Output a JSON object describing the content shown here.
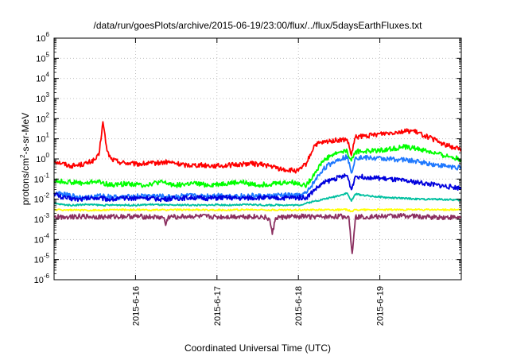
{
  "chart_data": {
    "type": "line",
    "title": "/data/run/goesPlots/archive/2015-06-19/23:00/flux/../flux/5daysEarthFluxes.txt",
    "xlabel": "Coordinated Universal Time (UTC)",
    "ylabel_parts": {
      "base": "protons/cm",
      "sup": "2",
      "rest": "-s-sr-MeV"
    },
    "y_scale": "log",
    "ylim_exp": [
      -6,
      6
    ],
    "y_ticks": [
      {
        "base": "10",
        "exp": "-6"
      },
      {
        "base": "10",
        "exp": "-5"
      },
      {
        "base": "10",
        "exp": "-4"
      },
      {
        "base": "10",
        "exp": "-3"
      },
      {
        "base": "10",
        "exp": "-2"
      },
      {
        "base": "10",
        "exp": "-1"
      },
      {
        "base": "10",
        "exp": "0"
      },
      {
        "base": "10",
        "exp": "1"
      },
      {
        "base": "10",
        "exp": "2"
      },
      {
        "base": "10",
        "exp": "3"
      },
      {
        "base": "10",
        "exp": "4"
      },
      {
        "base": "10",
        "exp": "5"
      },
      {
        "base": "10",
        "exp": "6"
      }
    ],
    "x_unit": "day of June 2015 (UTC)",
    "xlim": [
      15.0,
      20.0
    ],
    "x_ticks": [
      {
        "value": 16,
        "label": "2015-6-16"
      },
      {
        "value": 17,
        "label": "2015-6-17"
      },
      {
        "value": 18,
        "label": "2015-6-18"
      },
      {
        "value": 19,
        "label": "2015-6-19"
      }
    ],
    "grid": true,
    "grid_style": "dotted",
    "series": [
      {
        "color": "#ff0000",
        "points": [
          [
            15.0,
            0.8
          ],
          [
            15.1,
            0.6
          ],
          [
            15.2,
            0.45
          ],
          [
            15.3,
            0.5
          ],
          [
            15.4,
            0.6
          ],
          [
            15.5,
            0.9
          ],
          [
            15.55,
            1.5
          ],
          [
            15.6,
            70
          ],
          [
            15.65,
            2.5
          ],
          [
            15.7,
            1.0
          ],
          [
            15.8,
            0.7
          ],
          [
            16.0,
            0.55
          ],
          [
            16.2,
            0.6
          ],
          [
            16.4,
            0.7
          ],
          [
            16.6,
            0.5
          ],
          [
            16.8,
            0.5
          ],
          [
            17.0,
            0.45
          ],
          [
            17.2,
            0.5
          ],
          [
            17.4,
            0.6
          ],
          [
            17.6,
            0.5
          ],
          [
            17.8,
            0.3
          ],
          [
            18.0,
            0.25
          ],
          [
            18.1,
            0.6
          ],
          [
            18.2,
            5
          ],
          [
            18.4,
            8
          ],
          [
            18.6,
            9
          ],
          [
            18.65,
            1.5
          ],
          [
            18.7,
            12
          ],
          [
            18.9,
            15
          ],
          [
            19.0,
            18
          ],
          [
            19.2,
            22
          ],
          [
            19.4,
            25
          ],
          [
            19.6,
            12
          ],
          [
            19.8,
            5
          ],
          [
            20.0,
            3
          ]
        ]
      },
      {
        "color": "#00ff00",
        "points": [
          [
            15.0,
            0.08
          ],
          [
            15.2,
            0.07
          ],
          [
            15.4,
            0.06
          ],
          [
            15.5,
            0.08
          ],
          [
            15.7,
            0.05
          ],
          [
            15.9,
            0.06
          ],
          [
            16.1,
            0.05
          ],
          [
            16.3,
            0.07
          ],
          [
            16.5,
            0.05
          ],
          [
            16.7,
            0.06
          ],
          [
            16.9,
            0.05
          ],
          [
            17.1,
            0.06
          ],
          [
            17.3,
            0.07
          ],
          [
            17.5,
            0.05
          ],
          [
            17.7,
            0.06
          ],
          [
            17.9,
            0.07
          ],
          [
            18.1,
            0.05
          ],
          [
            18.2,
            0.2
          ],
          [
            18.3,
            0.8
          ],
          [
            18.4,
            1.5
          ],
          [
            18.5,
            2.2
          ],
          [
            18.6,
            2.5
          ],
          [
            18.65,
            0.8
          ],
          [
            18.7,
            2.3
          ],
          [
            18.9,
            2.5
          ],
          [
            19.1,
            3
          ],
          [
            19.3,
            4
          ],
          [
            19.5,
            3
          ],
          [
            19.7,
            1.8
          ],
          [
            19.9,
            1.2
          ],
          [
            20.0,
            0.9
          ]
        ]
      },
      {
        "color": "#1e78ff",
        "points": [
          [
            15.0,
            0.02
          ],
          [
            15.2,
            0.015
          ],
          [
            15.4,
            0.012
          ],
          [
            15.6,
            0.015
          ],
          [
            15.8,
            0.012
          ],
          [
            16.0,
            0.014
          ],
          [
            16.2,
            0.015
          ],
          [
            16.4,
            0.013
          ],
          [
            16.6,
            0.015
          ],
          [
            16.8,
            0.014
          ],
          [
            17.0,
            0.016
          ],
          [
            17.2,
            0.014
          ],
          [
            17.4,
            0.015
          ],
          [
            17.6,
            0.014
          ],
          [
            17.8,
            0.016
          ],
          [
            18.0,
            0.015
          ],
          [
            18.1,
            0.02
          ],
          [
            18.2,
            0.08
          ],
          [
            18.3,
            0.3
          ],
          [
            18.4,
            0.6
          ],
          [
            18.5,
            1.0
          ],
          [
            18.6,
            1.3
          ],
          [
            18.65,
            0.2
          ],
          [
            18.7,
            1.2
          ],
          [
            18.9,
            1.1
          ],
          [
            19.1,
            1.0
          ],
          [
            19.3,
            0.9
          ],
          [
            19.5,
            0.7
          ],
          [
            19.7,
            0.5
          ],
          [
            19.9,
            0.4
          ],
          [
            20.0,
            0.35
          ]
        ]
      },
      {
        "color": "#0000dd",
        "points": [
          [
            15.0,
            0.02
          ],
          [
            15.1,
            0.012
          ],
          [
            15.3,
            0.01
          ],
          [
            15.5,
            0.012
          ],
          [
            15.7,
            0.01
          ],
          [
            15.9,
            0.011
          ],
          [
            16.1,
            0.012
          ],
          [
            16.3,
            0.01
          ],
          [
            16.5,
            0.011
          ],
          [
            16.7,
            0.012
          ],
          [
            16.9,
            0.011
          ],
          [
            17.1,
            0.012
          ],
          [
            17.3,
            0.011
          ],
          [
            17.5,
            0.012
          ],
          [
            17.7,
            0.011
          ],
          [
            17.9,
            0.012
          ],
          [
            18.1,
            0.012
          ],
          [
            18.2,
            0.03
          ],
          [
            18.3,
            0.06
          ],
          [
            18.4,
            0.09
          ],
          [
            18.5,
            0.12
          ],
          [
            18.6,
            0.15
          ],
          [
            18.65,
            0.03
          ],
          [
            18.7,
            0.14
          ],
          [
            18.9,
            0.12
          ],
          [
            19.1,
            0.1
          ],
          [
            19.3,
            0.08
          ],
          [
            19.5,
            0.065
          ],
          [
            19.7,
            0.05
          ],
          [
            19.9,
            0.04
          ],
          [
            20.0,
            0.035
          ]
        ]
      },
      {
        "color": "#00c0a0",
        "points": [
          [
            15.0,
            0.006
          ],
          [
            15.2,
            0.005
          ],
          [
            15.4,
            0.0055
          ],
          [
            15.6,
            0.005
          ],
          [
            15.8,
            0.0052
          ],
          [
            16.0,
            0.005
          ],
          [
            16.2,
            0.0055
          ],
          [
            16.4,
            0.005
          ],
          [
            16.6,
            0.0052
          ],
          [
            16.8,
            0.005
          ],
          [
            17.0,
            0.0053
          ],
          [
            17.2,
            0.005
          ],
          [
            17.4,
            0.0055
          ],
          [
            17.6,
            0.005
          ],
          [
            17.8,
            0.0052
          ],
          [
            18.0,
            0.005
          ],
          [
            18.2,
            0.008
          ],
          [
            18.4,
            0.012
          ],
          [
            18.6,
            0.02
          ],
          [
            18.65,
            0.008
          ],
          [
            18.7,
            0.018
          ],
          [
            18.9,
            0.014
          ],
          [
            19.1,
            0.012
          ],
          [
            19.3,
            0.011
          ],
          [
            19.5,
            0.01
          ],
          [
            19.7,
            0.01
          ],
          [
            20.0,
            0.009
          ]
        ]
      },
      {
        "color": "#ffff00",
        "points": [
          [
            15.0,
            0.003
          ],
          [
            15.4,
            0.0028
          ],
          [
            15.8,
            0.003
          ],
          [
            16.2,
            0.0029
          ],
          [
            16.6,
            0.003
          ],
          [
            17.0,
            0.0029
          ],
          [
            17.4,
            0.003
          ],
          [
            17.8,
            0.0029
          ],
          [
            18.2,
            0.003
          ],
          [
            18.6,
            0.003
          ],
          [
            18.65,
            0.0025
          ],
          [
            18.7,
            0.003
          ],
          [
            19.0,
            0.003
          ],
          [
            19.5,
            0.003
          ],
          [
            20.0,
            0.003
          ]
        ]
      },
      {
        "color": "#8b3060",
        "points": [
          [
            15.0,
            0.0013
          ],
          [
            15.3,
            0.0014
          ],
          [
            15.6,
            0.0013
          ],
          [
            15.9,
            0.0014
          ],
          [
            16.2,
            0.0013
          ],
          [
            16.35,
            0.0012
          ],
          [
            16.37,
            0.0005
          ],
          [
            16.4,
            0.0013
          ],
          [
            16.7,
            0.0014
          ],
          [
            17.0,
            0.0013
          ],
          [
            17.3,
            0.0014
          ],
          [
            17.6,
            0.0013
          ],
          [
            17.65,
            0.0009
          ],
          [
            17.68,
            0.00018
          ],
          [
            17.72,
            0.0012
          ],
          [
            18.0,
            0.0014
          ],
          [
            18.3,
            0.0013
          ],
          [
            18.5,
            0.0014
          ],
          [
            18.62,
            0.0013
          ],
          [
            18.66,
            2e-05
          ],
          [
            18.7,
            0.0013
          ],
          [
            19.0,
            0.0014
          ],
          [
            19.3,
            0.0015
          ],
          [
            19.6,
            0.0013
          ],
          [
            20.0,
            0.0012
          ]
        ]
      }
    ]
  }
}
